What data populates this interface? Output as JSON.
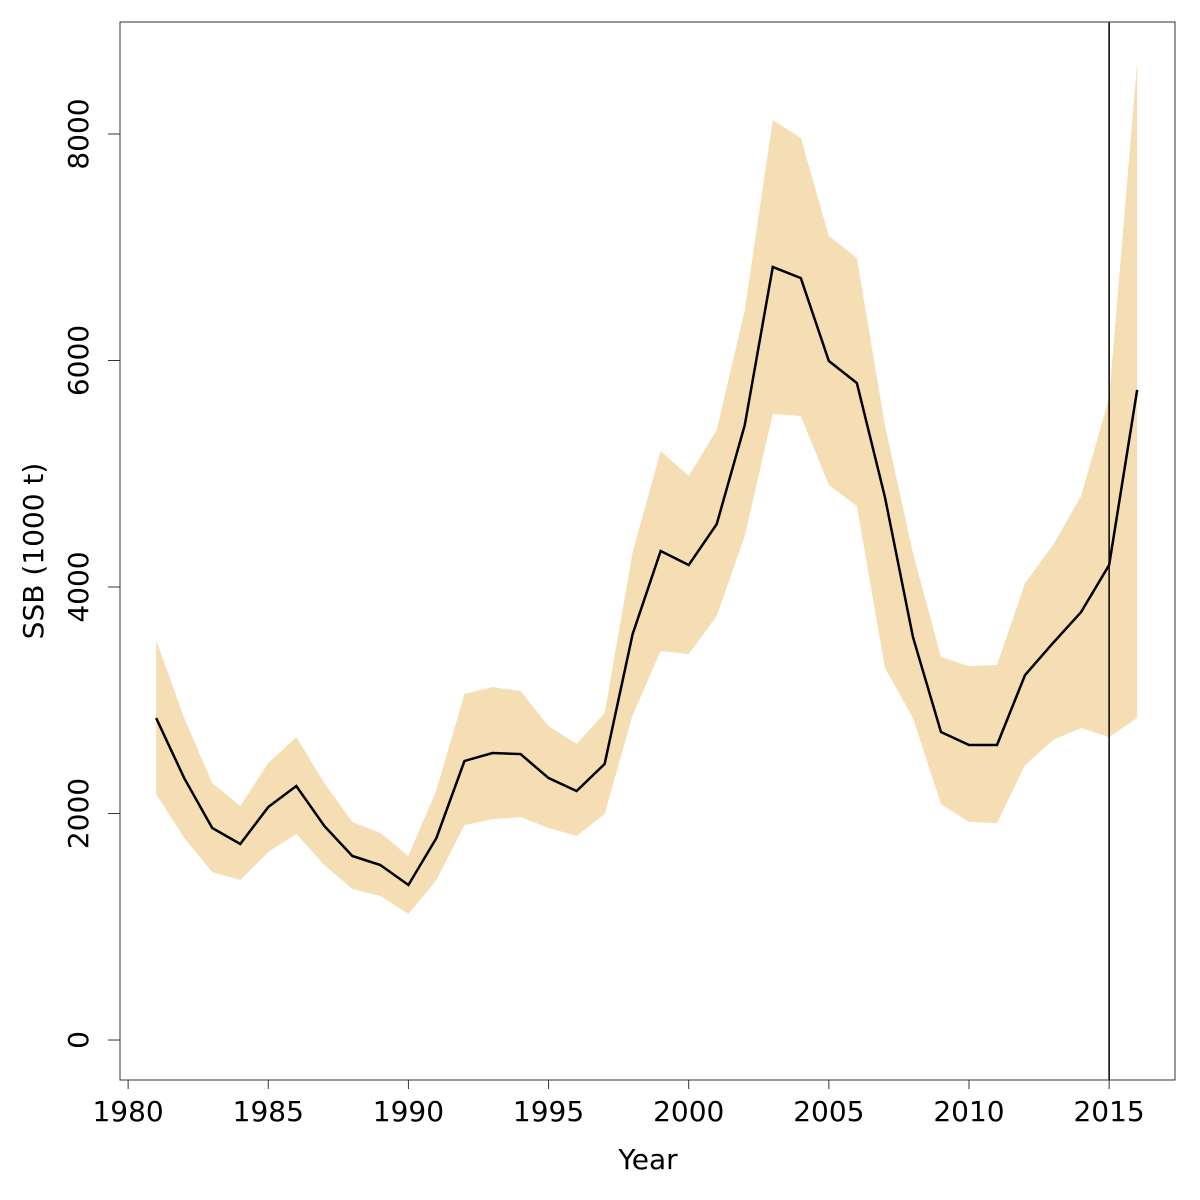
{
  "chart_data": {
    "type": "line",
    "x_label": "Year",
    "y_label": "SSB (1000 t)",
    "x": [
      1981,
      1982,
      1983,
      1984,
      1985,
      1986,
      1987,
      1988,
      1989,
      1990,
      1991,
      1992,
      1993,
      1994,
      1995,
      1996,
      1997,
      1998,
      1999,
      2000,
      2001,
      2002,
      2003,
      2004,
      2005,
      2006,
      2007,
      2008,
      2009,
      2010,
      2011,
      2012,
      2013,
      2014,
      2015,
      2016
    ],
    "values": [
      2843,
      2313,
      1872,
      1731,
      2057,
      2243,
      1890,
      1625,
      1545,
      1369,
      1784,
      2464,
      2534,
      2525,
      2313,
      2199,
      2437,
      3585,
      4318,
      4194,
      4556,
      5430,
      6826,
      6728,
      5996,
      5801,
      4795,
      3559,
      2720,
      2605,
      2605,
      3223,
      3506,
      3779,
      4194,
      5740
    ],
    "color": "#000000",
    "upper": [
      3532,
      2843,
      2269,
      2066,
      2446,
      2675,
      2269,
      1925,
      1828,
      1625,
      2208,
      3055,
      3117,
      3082,
      2773,
      2614,
      2887,
      4309,
      5201,
      4980,
      5386,
      6446,
      8124,
      7965,
      7099,
      6905,
      5430,
      4300,
      3382,
      3302,
      3311,
      4035,
      4371,
      4804,
      5669,
      8636
    ],
    "lower": [
      2172,
      1784,
      1483,
      1413,
      1660,
      1819,
      1545,
      1333,
      1272,
      1113,
      1413,
      1898,
      1951,
      1969,
      1872,
      1801,
      1996,
      2870,
      3435,
      3408,
      3744,
      4450,
      5528,
      5510,
      4901,
      4715,
      3285,
      2843,
      2084,
      1925,
      1916,
      2428,
      2649,
      2755,
      2675,
      2843
    ],
    "band_color": "#f5deb3",
    "vline": 2015,
    "xlim": [
      1979.71,
      2017.35
    ],
    "xticks": [
      1980,
      1985,
      1990,
      1995,
      2000,
      2005,
      2010,
      2015
    ],
    "ylim": [
      -353,
      8989
    ],
    "yticks": [
      0,
      2000,
      4000,
      6000,
      8000
    ]
  }
}
